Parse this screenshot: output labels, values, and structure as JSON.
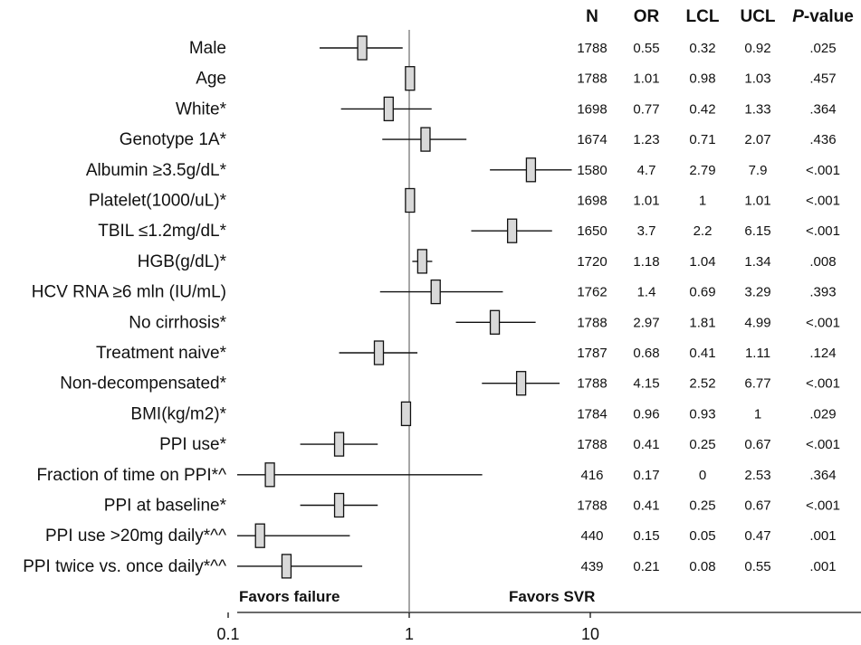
{
  "chart_data": {
    "type": "forest",
    "x_scale": "log",
    "xlim": [
      0.1,
      30
    ],
    "reference_line": 1,
    "x_ticks": [
      "0.1",
      "1",
      "10"
    ],
    "favors_left": "Favors failure",
    "favors_right": "Favors SVR",
    "columns": {
      "n": "N",
      "or": "OR",
      "lcl": "LCL",
      "ucl": "UCL",
      "p": "P-value"
    },
    "rows": [
      {
        "label": "Male",
        "n": "1788",
        "or": "0.55",
        "lcl": "0.32",
        "ucl": "0.92",
        "p": ".025"
      },
      {
        "label": "Age",
        "n": "1788",
        "or": "1.01",
        "lcl": "0.98",
        "ucl": "1.03",
        "p": ".457"
      },
      {
        "label": "White*",
        "n": "1698",
        "or": "0.77",
        "lcl": "0.42",
        "ucl": "1.33",
        "p": ".364"
      },
      {
        "label": "Genotype 1A*",
        "n": "1674",
        "or": "1.23",
        "lcl": "0.71",
        "ucl": "2.07",
        "p": ".436"
      },
      {
        "label": "Albumin ≥3.5g/dL*",
        "n": "1580",
        "or": "4.7",
        "lcl": "2.79",
        "ucl": "7.9",
        "p": "<.001"
      },
      {
        "label": "Platelet(1000/uL)*",
        "n": "1698",
        "or": "1.01",
        "lcl": "1",
        "ucl": "1.01",
        "p": "<.001"
      },
      {
        "label": "TBIL ≤1.2mg/dL*",
        "n": "1650",
        "or": "3.7",
        "lcl": "2.2",
        "ucl": "6.15",
        "p": "<.001"
      },
      {
        "label": "HGB(g/dL)*",
        "n": "1720",
        "or": "1.18",
        "lcl": "1.04",
        "ucl": "1.34",
        "p": ".008"
      },
      {
        "label": "HCV RNA ≥6 mln (IU/mL)",
        "n": "1762",
        "or": "1.4",
        "lcl": "0.69",
        "ucl": "3.29",
        "p": ".393"
      },
      {
        "label": "No cirrhosis*",
        "n": "1788",
        "or": "2.97",
        "lcl": "1.81",
        "ucl": "4.99",
        "p": "<.001"
      },
      {
        "label": "Treatment naive*",
        "n": "1787",
        "or": "0.68",
        "lcl": "0.41",
        "ucl": "1.11",
        "p": ".124"
      },
      {
        "label": "Non-decompensated*",
        "n": "1788",
        "or": "4.15",
        "lcl": "2.52",
        "ucl": "6.77",
        "p": "<.001"
      },
      {
        "label": "BMI(kg/m2)*",
        "n": "1784",
        "or": "0.96",
        "lcl": "0.93",
        "ucl": "1",
        "p": ".029"
      },
      {
        "label": "PPI use*",
        "n": "1788",
        "or": "0.41",
        "lcl": "0.25",
        "ucl": "0.67",
        "p": "<.001"
      },
      {
        "label": "Fraction of time on PPI*^",
        "n": "416",
        "or": "0.17",
        "lcl": "0",
        "ucl": "2.53",
        "p": ".364"
      },
      {
        "label": "PPI at baseline*",
        "n": "1788",
        "or": "0.41",
        "lcl": "0.25",
        "ucl": "0.67",
        "p": "<.001"
      },
      {
        "label": "PPI use >20mg daily*^^",
        "n": "440",
        "or": "0.15",
        "lcl": "0.05",
        "ucl": "0.47",
        "p": ".001"
      },
      {
        "label": "PPI twice vs. once daily*^^",
        "n": "439",
        "or": "0.21",
        "lcl": "0.08",
        "ucl": "0.55",
        "p": ".001"
      }
    ]
  },
  "colors": {
    "box_fill": "#d9d9d9",
    "stroke": "#111111"
  }
}
